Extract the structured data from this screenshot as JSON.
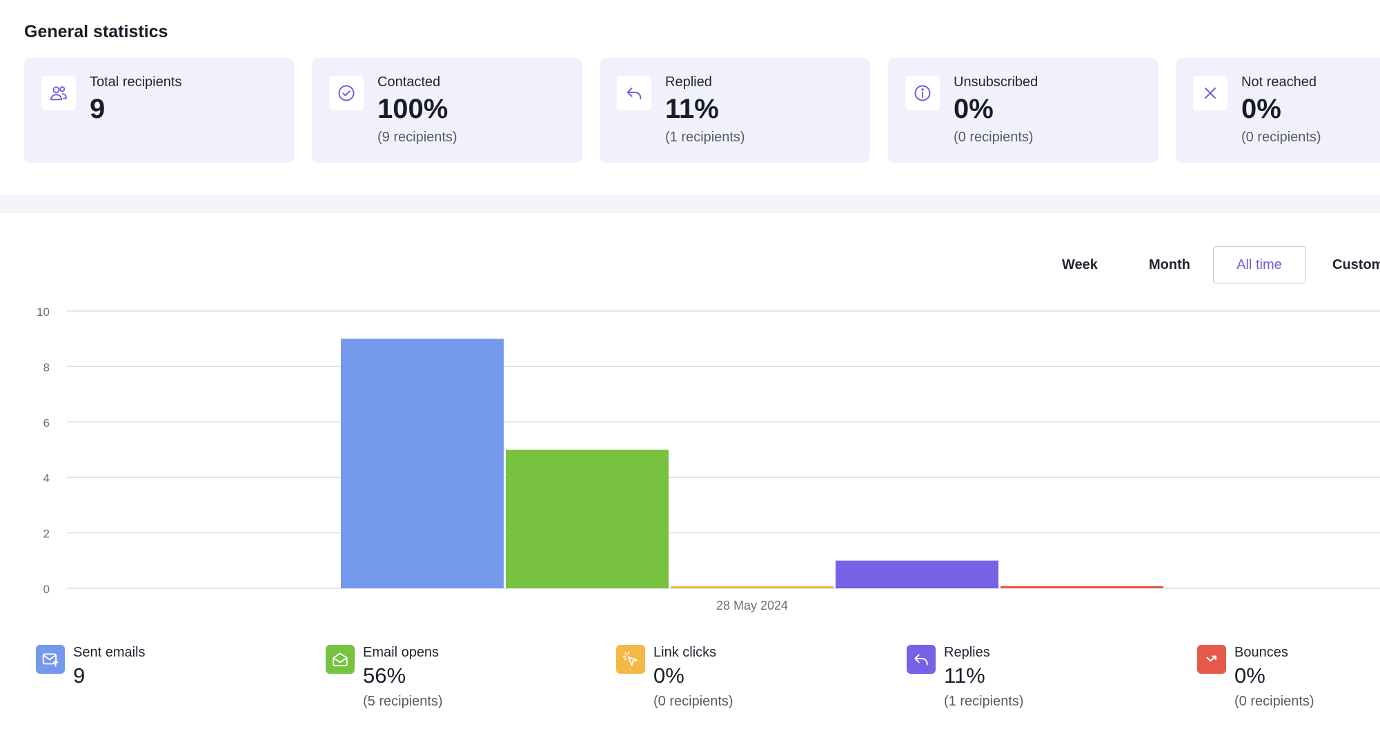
{
  "section_title": "General statistics",
  "stats": [
    {
      "icon": "users-icon",
      "label": "Total recipients",
      "value": "9",
      "sub": ""
    },
    {
      "icon": "check-circle-icon",
      "label": "Contacted",
      "value": "100%",
      "sub": "(9 recipients)"
    },
    {
      "icon": "reply-icon",
      "label": "Replied",
      "value": "11%",
      "sub": "(1 recipients)"
    },
    {
      "icon": "info-circle-icon",
      "label": "Unsubscribed",
      "value": "0%",
      "sub": "(0 recipients)"
    },
    {
      "icon": "close-icon",
      "label": "Not reached",
      "value": "0%",
      "sub": "(0 recipients)"
    }
  ],
  "range_tabs": [
    {
      "label": "Week",
      "active": false
    },
    {
      "label": "Month",
      "active": false
    },
    {
      "label": "All time",
      "active": true
    },
    {
      "label": "Custom",
      "active": false
    }
  ],
  "chart_data": {
    "type": "bar",
    "categories": [
      "28 May 2024"
    ],
    "series": [
      {
        "name": "Sent emails",
        "color": "#7499ec",
        "values": [
          9
        ]
      },
      {
        "name": "Email opens",
        "color": "#78c242",
        "values": [
          5
        ]
      },
      {
        "name": "Link clicks",
        "color": "#f4b846",
        "values": [
          0
        ]
      },
      {
        "name": "Replies",
        "color": "#7761e4",
        "values": [
          1
        ]
      },
      {
        "name": "Bounces",
        "color": "#e55a4a",
        "values": [
          0
        ]
      }
    ],
    "title": "",
    "xlabel": "",
    "ylabel": "",
    "ylim": [
      0,
      10
    ],
    "yticks": [
      "0",
      "2",
      "4",
      "6",
      "8",
      "10"
    ],
    "grid": true,
    "legend": "bottom"
  },
  "legend": [
    {
      "icon": "envelope-send-icon",
      "color": "#7499ec",
      "label": "Sent emails",
      "value": "9",
      "sub": ""
    },
    {
      "icon": "envelope-open-icon",
      "color": "#78c242",
      "label": "Email opens",
      "value": "56%",
      "sub": "(5 recipients)"
    },
    {
      "icon": "cursor-click-icon",
      "color": "#f4b846",
      "label": "Link clicks",
      "value": "0%",
      "sub": "(0 recipients)"
    },
    {
      "icon": "reply-icon",
      "color": "#7761e4",
      "label": "Replies",
      "value": "11%",
      "sub": "(1 recipients)"
    },
    {
      "icon": "bounce-arrow-icon",
      "color": "#e55a4a",
      "label": "Bounces",
      "value": "0%",
      "sub": "(0 recipients)"
    }
  ]
}
